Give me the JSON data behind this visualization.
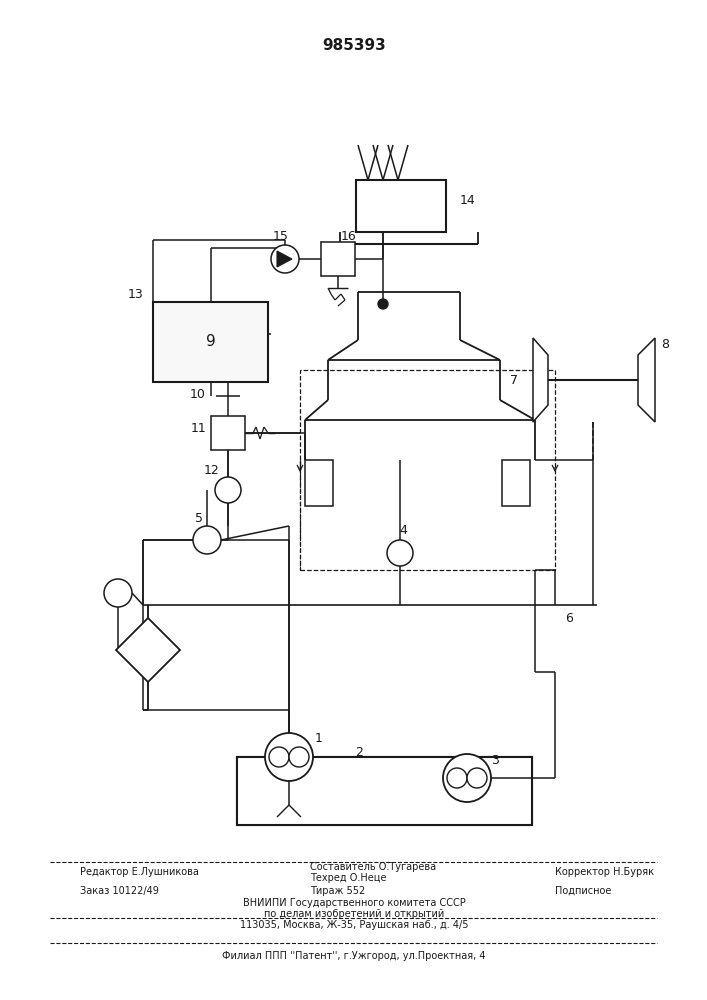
{
  "title": "985393",
  "bg_color": "#ffffff",
  "line_color": "#1a1a1a",
  "footer": {
    "editor": "Редактор Е.Лушникова",
    "comp_top": "Составитель О.Тугарева",
    "tech": "Техред О.Неце",
    "corrector": "Корректор Н.Буряк",
    "order": "Заказ 10122/49",
    "tirazh": "Тираж 552",
    "podpis": "Подписное",
    "vniip": "ВНИИПИ Государственного комитета СССР",
    "po_delam": "по делам изобретений и открытий",
    "address": "113035, Москва, Ж-35, Раушская наб., д. 4/5",
    "filial": "Филиал ППП ''Патент'', г.Ужгород, ул.Проектная, 4"
  }
}
